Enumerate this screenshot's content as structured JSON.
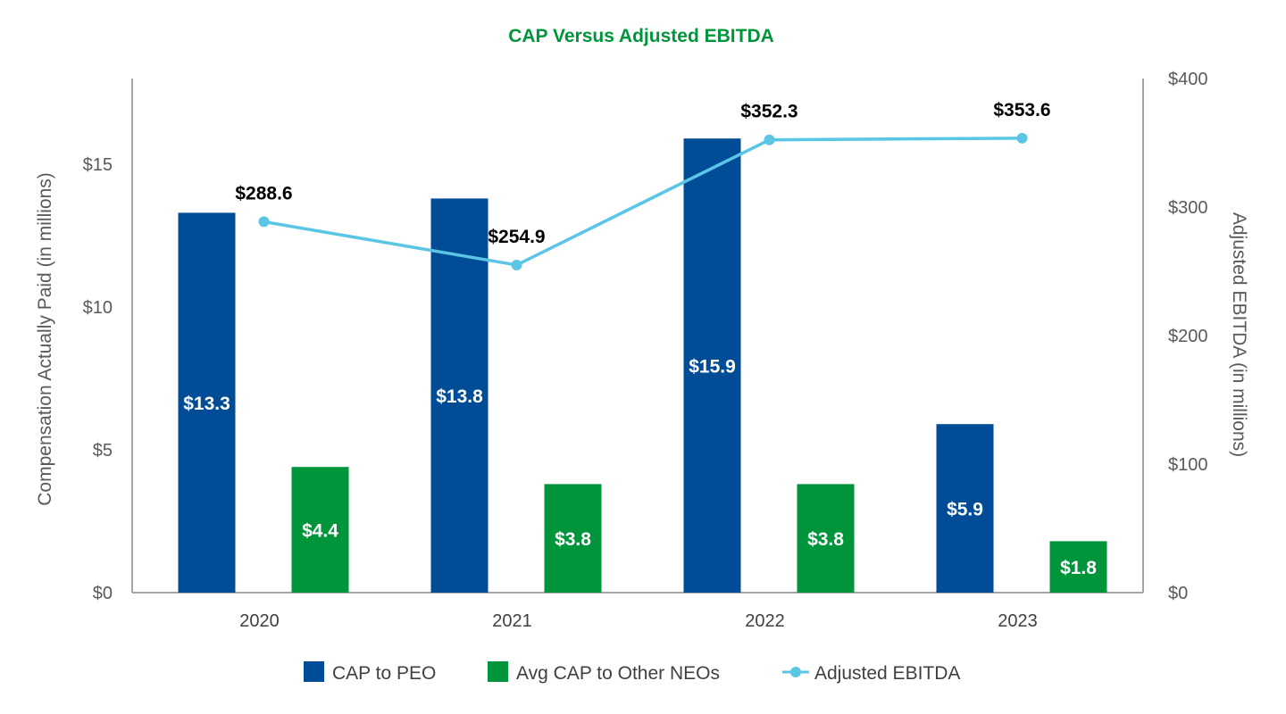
{
  "chart_data": {
    "type": "bar",
    "title": "CAP Versus Adjusted EBITDA",
    "categories": [
      "2020",
      "2021",
      "2022",
      "2023"
    ],
    "ylabel": "Compensation Actually Paid (in millions)",
    "y2label": "Adjusted EBITDA (in millions)",
    "ylim": [
      0,
      18
    ],
    "y2lim": [
      0,
      400
    ],
    "yticks": [
      0,
      5,
      10,
      15
    ],
    "yticklabels": [
      "$0",
      "$5",
      "$10",
      "$15"
    ],
    "y2ticks": [
      0,
      100,
      200,
      300,
      400
    ],
    "y2ticklabels": [
      "$0",
      "$100",
      "$200",
      "$300",
      "$400"
    ],
    "grid": false,
    "legend_position": "bottom",
    "series": [
      {
        "name": "CAP to PEO",
        "kind": "bar",
        "axis": "left",
        "color": "#004C97",
        "values": [
          13.3,
          13.8,
          15.9,
          5.9
        ],
        "labels": [
          "$13.3",
          "$13.8",
          "$15.9",
          "$5.9"
        ]
      },
      {
        "name": "Avg CAP to Other NEOs",
        "kind": "bar",
        "axis": "left",
        "color": "#00953A",
        "values": [
          4.4,
          3.8,
          3.8,
          1.8
        ],
        "labels": [
          "$4.4",
          "$3.8",
          "$3.8",
          "$1.8"
        ]
      },
      {
        "name": "Adjusted EBITDA",
        "kind": "line",
        "axis": "right",
        "color": "#5BC5E5",
        "values": [
          288.6,
          254.9,
          352.3,
          353.6
        ],
        "labels": [
          "$288.6",
          "$254.9",
          "$352.3",
          "$353.6"
        ]
      }
    ]
  },
  "colors": {
    "title": "#00953A",
    "axis": "#A6A6A6"
  }
}
